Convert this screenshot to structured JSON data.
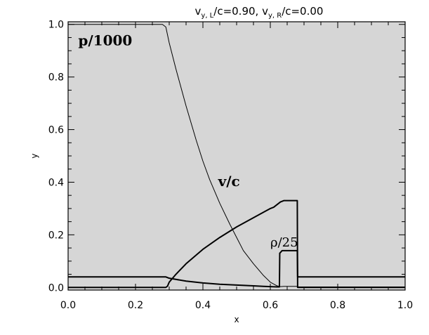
{
  "chart_data": {
    "type": "line",
    "title": {
      "prefix": "v",
      "sub_left": "y, L",
      "mid": "/c=0.90,  v",
      "sub_right": "y, R",
      "suffix": "/c=0.00"
    },
    "xlabel": "x",
    "ylabel": "y",
    "xlim": [
      0,
      1
    ],
    "ylim": [
      -0.01,
      1.01
    ],
    "x_ticks": [
      0.0,
      0.2,
      0.4,
      0.6,
      0.8,
      1.0
    ],
    "x_tick_labels": [
      "0.0",
      "0.2",
      "0.4",
      "0.6",
      "0.8",
      "1.0"
    ],
    "y_ticks": [
      0.0,
      0.2,
      0.4,
      0.6,
      0.8,
      1.0
    ],
    "y_tick_labels": [
      "0.0",
      "0.2",
      "0.4",
      "0.6",
      "0.8",
      "1.0"
    ],
    "grid": false,
    "background_color": "#d6d6d6",
    "line_color": "#000000",
    "series": [
      {
        "name": "p/1000",
        "stroke_width": 1,
        "x": [
          0.0,
          0.28,
          0.29,
          0.3,
          0.32,
          0.35,
          0.38,
          0.4,
          0.42,
          0.45,
          0.48,
          0.5,
          0.52,
          0.55,
          0.58,
          0.6,
          0.62,
          0.63,
          0.64,
          0.68,
          0.681,
          1.0
        ],
        "y": [
          1.0,
          1.0,
          0.99,
          0.93,
          0.83,
          0.69,
          0.56,
          0.48,
          0.41,
          0.32,
          0.24,
          0.19,
          0.14,
          0.09,
          0.045,
          0.02,
          0.006,
          0.003,
          0.004,
          0.004,
          0.002,
          0.002
        ]
      },
      {
        "name": "v/c",
        "stroke_width": 2,
        "x": [
          0.0,
          0.29,
          0.295,
          0.3,
          0.32,
          0.35,
          0.4,
          0.45,
          0.5,
          0.55,
          0.6,
          0.61,
          0.63,
          0.64,
          0.68,
          0.681,
          1.0
        ],
        "y": [
          0.0,
          0.0,
          0.005,
          0.02,
          0.05,
          0.09,
          0.145,
          0.19,
          0.23,
          0.265,
          0.3,
          0.305,
          0.325,
          0.33,
          0.33,
          0.0,
          0.0
        ],
        "label_x": 0.42,
        "label_y": 0.39
      },
      {
        "name": "ρ/25",
        "stroke_width": 2,
        "x": [
          0.0,
          0.28,
          0.29,
          0.3,
          0.35,
          0.4,
          0.45,
          0.5,
          0.55,
          0.58,
          0.6,
          0.62,
          0.627,
          0.628,
          0.635,
          0.64,
          0.68,
          0.681,
          1.0
        ],
        "y": [
          0.04,
          0.04,
          0.04,
          0.035,
          0.024,
          0.017,
          0.012,
          0.009,
          0.006,
          0.004,
          0.003,
          0.002,
          0.002,
          0.13,
          0.14,
          0.14,
          0.14,
          0.04,
          0.04
        ],
        "label_x": 0.605,
        "label_y": 0.155
      }
    ],
    "annotations": [
      {
        "text": "p/1000",
        "x": 0.03,
        "y": 0.92,
        "style": "bold"
      },
      {
        "text": "v/c",
        "x": 0.445,
        "y": 0.385,
        "style": "bold"
      },
      {
        "text": "ρ/25",
        "x": 0.6,
        "y": 0.155,
        "style": "normal"
      }
    ]
  }
}
